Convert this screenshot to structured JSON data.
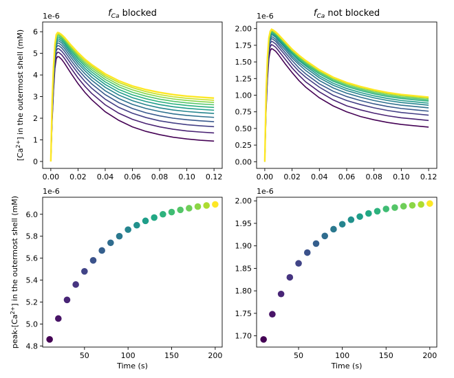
{
  "chart_data": [
    {
      "type": "line",
      "title_symbol": "f",
      "title_sub": "Ca",
      "title_rest": "blocked",
      "ylabel": "",
      "xlabel": "",
      "xlim": [
        -0.006,
        0.126
      ],
      "ylim": [
        -0.32,
        6.45
      ],
      "offset_text": "1e-6",
      "x_ticks": [
        0.0,
        0.02,
        0.04,
        0.06,
        0.08,
        0.1,
        0.12
      ],
      "x_tick_labels": [
        "0.00",
        "0.02",
        "0.04",
        "0.06",
        "0.08",
        "0.10",
        "0.12"
      ],
      "y_ticks": [
        0,
        1,
        2,
        3,
        4,
        5,
        6
      ],
      "y_tick_labels": [
        "0",
        "1",
        "2",
        "3",
        "4",
        "5",
        "6"
      ],
      "curve_time_points": [
        0.0,
        0.001,
        0.002,
        0.003,
        0.004,
        0.005,
        0.006,
        0.008,
        0.01,
        0.015,
        0.02,
        0.025,
        0.03,
        0.04,
        0.05,
        0.06,
        0.07,
        0.08,
        0.09,
        0.1,
        0.11,
        0.12
      ],
      "series": [
        {
          "color": "#440154",
          "values": [
            0.0,
            1.9,
            3.3,
            4.3,
            4.75,
            4.85,
            4.84,
            4.72,
            4.55,
            4.06,
            3.6,
            3.2,
            2.86,
            2.3,
            1.9,
            1.6,
            1.39,
            1.24,
            1.12,
            1.04,
            0.98,
            0.94
          ]
        },
        {
          "color": "#482173",
          "values": [
            0.0,
            2.0,
            3.4,
            4.45,
            4.95,
            5.05,
            5.04,
            4.93,
            4.77,
            4.3,
            3.86,
            3.48,
            3.15,
            2.62,
            2.23,
            1.95,
            1.75,
            1.6,
            1.49,
            1.41,
            1.36,
            1.32
          ]
        },
        {
          "color": "#433e85",
          "values": [
            0.0,
            2.1,
            3.55,
            4.6,
            5.12,
            5.22,
            5.21,
            5.1,
            4.95,
            4.5,
            4.08,
            3.71,
            3.39,
            2.88,
            2.5,
            2.23,
            2.03,
            1.88,
            1.78,
            1.7,
            1.65,
            1.61
          ]
        },
        {
          "color": "#38588c",
          "values": [
            0.0,
            2.2,
            3.7,
            4.75,
            5.26,
            5.36,
            5.35,
            5.25,
            5.1,
            4.66,
            4.25,
            3.9,
            3.59,
            3.09,
            2.72,
            2.45,
            2.25,
            2.11,
            2.0,
            1.93,
            1.88,
            1.84
          ]
        },
        {
          "color": "#2d708e",
          "values": [
            0.0,
            2.3,
            3.82,
            4.87,
            5.38,
            5.48,
            5.47,
            5.37,
            5.23,
            4.8,
            4.4,
            4.06,
            3.76,
            3.27,
            2.91,
            2.64,
            2.45,
            2.31,
            2.2,
            2.13,
            2.08,
            2.04
          ]
        },
        {
          "color": "#25858e",
          "values": [
            0.0,
            2.4,
            3.95,
            5.0,
            5.48,
            5.58,
            5.57,
            5.48,
            5.34,
            4.92,
            4.53,
            4.2,
            3.9,
            3.43,
            3.07,
            2.81,
            2.62,
            2.48,
            2.38,
            2.31,
            2.26,
            2.22
          ]
        },
        {
          "color": "#1e9b8a",
          "values": [
            0.0,
            2.5,
            4.05,
            5.1,
            5.57,
            5.67,
            5.66,
            5.57,
            5.44,
            5.02,
            4.64,
            4.31,
            4.03,
            3.56,
            3.21,
            2.95,
            2.77,
            2.63,
            2.53,
            2.46,
            2.41,
            2.37
          ]
        },
        {
          "color": "#2ab07f",
          "values": [
            0.0,
            2.6,
            4.15,
            5.18,
            5.65,
            5.75,
            5.74,
            5.65,
            5.52,
            5.11,
            4.74,
            4.42,
            4.14,
            3.68,
            3.33,
            3.08,
            2.9,
            2.76,
            2.66,
            2.59,
            2.54,
            2.5
          ]
        },
        {
          "color": "#52c569",
          "values": [
            0.0,
            2.65,
            4.22,
            5.25,
            5.72,
            5.82,
            5.81,
            5.72,
            5.59,
            5.19,
            4.82,
            4.51,
            4.24,
            3.79,
            3.45,
            3.2,
            3.02,
            2.88,
            2.78,
            2.71,
            2.66,
            2.62
          ]
        },
        {
          "color": "#86d549",
          "values": [
            0.0,
            2.7,
            4.28,
            5.31,
            5.78,
            5.88,
            5.87,
            5.78,
            5.65,
            5.26,
            4.9,
            4.59,
            4.33,
            3.89,
            3.55,
            3.31,
            3.13,
            2.99,
            2.89,
            2.82,
            2.77,
            2.73
          ]
        },
        {
          "color": "#c2df23",
          "values": [
            0.0,
            2.75,
            4.33,
            5.36,
            5.82,
            5.92,
            5.91,
            5.82,
            5.7,
            5.32,
            4.97,
            4.67,
            4.41,
            3.97,
            3.65,
            3.41,
            3.23,
            3.09,
            2.99,
            2.92,
            2.87,
            2.83
          ]
        },
        {
          "color": "#fde725",
          "values": [
            0.0,
            2.8,
            4.38,
            5.4,
            5.86,
            5.96,
            5.95,
            5.86,
            5.74,
            5.37,
            5.03,
            4.73,
            4.48,
            4.05,
            3.73,
            3.49,
            3.32,
            3.19,
            3.09,
            3.02,
            2.97,
            2.93
          ]
        }
      ]
    },
    {
      "type": "line",
      "title_symbol": "f",
      "title_sub": "Ca",
      "title_rest": "not blocked",
      "ylabel": "",
      "xlabel": "",
      "xlim": [
        -0.006,
        0.126
      ],
      "ylim": [
        -0.1,
        2.1
      ],
      "offset_text": "1e-6",
      "x_ticks": [
        0.0,
        0.02,
        0.04,
        0.06,
        0.08,
        0.1,
        0.12
      ],
      "x_tick_labels": [
        "0.00",
        "0.02",
        "0.04",
        "0.06",
        "0.08",
        "0.10",
        "0.12"
      ],
      "y_ticks": [
        0,
        0.25,
        0.5,
        0.75,
        1.0,
        1.25,
        1.5,
        1.75,
        2.0
      ],
      "y_tick_labels": [
        "0.00",
        "0.25",
        "0.50",
        "0.75",
        "1.00",
        "1.25",
        "1.50",
        "1.75",
        "2.00"
      ],
      "curve_time_points": [
        0.0,
        0.001,
        0.002,
        0.003,
        0.004,
        0.005,
        0.006,
        0.008,
        0.01,
        0.015,
        0.02,
        0.025,
        0.03,
        0.04,
        0.05,
        0.06,
        0.07,
        0.08,
        0.09,
        0.1,
        0.11,
        0.12
      ],
      "series": [
        {
          "color": "#440154",
          "values": [
            0.0,
            0.78,
            1.25,
            1.55,
            1.67,
            1.7,
            1.69,
            1.66,
            1.61,
            1.47,
            1.34,
            1.22,
            1.12,
            0.96,
            0.84,
            0.75,
            0.68,
            0.63,
            0.59,
            0.56,
            0.54,
            0.52
          ]
        },
        {
          "color": "#482173",
          "values": [
            0.0,
            0.82,
            1.3,
            1.61,
            1.73,
            1.76,
            1.75,
            1.72,
            1.67,
            1.54,
            1.41,
            1.3,
            1.2,
            1.05,
            0.93,
            0.84,
            0.78,
            0.73,
            0.69,
            0.66,
            0.64,
            0.62
          ]
        },
        {
          "color": "#433e85",
          "values": [
            0.0,
            0.86,
            1.35,
            1.66,
            1.78,
            1.81,
            1.8,
            1.77,
            1.72,
            1.6,
            1.47,
            1.36,
            1.27,
            1.12,
            1.0,
            0.92,
            0.86,
            0.81,
            0.77,
            0.74,
            0.72,
            0.7
          ]
        },
        {
          "color": "#38588c",
          "values": [
            0.0,
            0.9,
            1.4,
            1.7,
            1.82,
            1.85,
            1.84,
            1.81,
            1.76,
            1.64,
            1.52,
            1.41,
            1.32,
            1.17,
            1.06,
            0.98,
            0.92,
            0.87,
            0.83,
            0.8,
            0.78,
            0.76
          ]
        },
        {
          "color": "#2d708e",
          "values": [
            0.0,
            0.93,
            1.44,
            1.74,
            1.85,
            1.88,
            1.87,
            1.84,
            1.79,
            1.68,
            1.56,
            1.46,
            1.37,
            1.22,
            1.11,
            1.03,
            0.97,
            0.92,
            0.88,
            0.85,
            0.83,
            0.81
          ]
        },
        {
          "color": "#25858e",
          "values": [
            0.0,
            0.96,
            1.47,
            1.77,
            1.88,
            1.91,
            1.9,
            1.87,
            1.82,
            1.71,
            1.59,
            1.49,
            1.41,
            1.26,
            1.15,
            1.07,
            1.01,
            0.96,
            0.92,
            0.89,
            0.87,
            0.85
          ]
        },
        {
          "color": "#1e9b8a",
          "values": [
            0.0,
            0.98,
            1.49,
            1.79,
            1.9,
            1.93,
            1.92,
            1.89,
            1.84,
            1.73,
            1.62,
            1.52,
            1.44,
            1.29,
            1.18,
            1.1,
            1.04,
            0.99,
            0.95,
            0.92,
            0.9,
            0.88
          ]
        },
        {
          "color": "#2ab07f",
          "values": [
            0.0,
            1.0,
            1.51,
            1.81,
            1.92,
            1.95,
            1.94,
            1.91,
            1.86,
            1.75,
            1.64,
            1.54,
            1.46,
            1.32,
            1.21,
            1.13,
            1.07,
            1.02,
            0.98,
            0.95,
            0.93,
            0.91
          ]
        },
        {
          "color": "#52c569",
          "values": [
            0.0,
            1.02,
            1.53,
            1.83,
            1.93,
            1.96,
            1.95,
            1.92,
            1.88,
            1.77,
            1.66,
            1.56,
            1.48,
            1.34,
            1.23,
            1.15,
            1.09,
            1.04,
            1.0,
            0.97,
            0.95,
            0.93
          ]
        },
        {
          "color": "#86d549",
          "values": [
            0.0,
            1.04,
            1.55,
            1.84,
            1.94,
            1.97,
            1.96,
            1.93,
            1.89,
            1.78,
            1.67,
            1.58,
            1.5,
            1.36,
            1.25,
            1.17,
            1.11,
            1.06,
            1.02,
            0.99,
            0.97,
            0.95
          ]
        },
        {
          "color": "#c2df23",
          "values": [
            0.0,
            1.05,
            1.56,
            1.85,
            1.95,
            1.98,
            1.97,
            1.94,
            1.9,
            1.79,
            1.68,
            1.59,
            1.51,
            1.37,
            1.26,
            1.18,
            1.12,
            1.07,
            1.03,
            1.0,
            0.98,
            0.96
          ]
        },
        {
          "color": "#fde725",
          "values": [
            0.0,
            1.06,
            1.57,
            1.86,
            1.96,
            1.99,
            1.98,
            1.95,
            1.91,
            1.8,
            1.69,
            1.6,
            1.52,
            1.38,
            1.27,
            1.19,
            1.13,
            1.08,
            1.04,
            1.01,
            0.99,
            0.97
          ]
        }
      ]
    },
    {
      "type": "scatter",
      "title": "",
      "xlabel": "Time (s)",
      "ylabel": "",
      "xlim": [
        2,
        208
      ],
      "ylim": [
        4.79,
        6.155
      ],
      "offset_text": "1e-6",
      "x_ticks": [
        50,
        100,
        150,
        200
      ],
      "x_tick_labels": [
        "50",
        "100",
        "150",
        "200"
      ],
      "y_ticks": [
        4.8,
        5.0,
        5.2,
        5.4,
        5.6,
        5.8,
        6.0
      ],
      "y_tick_labels": [
        "4.8",
        "5.0",
        "5.2",
        "5.4",
        "5.6",
        "5.8",
        "6.0"
      ],
      "x": [
        10,
        20,
        30,
        40,
        50,
        60,
        70,
        80,
        90,
        100,
        110,
        120,
        130,
        140,
        150,
        160,
        170,
        180,
        190,
        200
      ],
      "y": [
        4.86,
        5.05,
        5.22,
        5.36,
        5.48,
        5.58,
        5.67,
        5.74,
        5.8,
        5.86,
        5.9,
        5.94,
        5.97,
        6.0,
        6.02,
        6.04,
        6.055,
        6.07,
        6.08,
        6.09
      ],
      "colors": [
        "#440154",
        "#481467",
        "#482576",
        "#463480",
        "#414487",
        "#3b528b",
        "#355f8d",
        "#2f6c8e",
        "#2a788e",
        "#25848e",
        "#21918c",
        "#1f9e89",
        "#22a884",
        "#2db27d",
        "#3fbc73",
        "#54c568",
        "#6ece58",
        "#8bd646",
        "#addc30",
        "#fde725"
      ]
    },
    {
      "type": "scatter",
      "title": "",
      "xlabel": "Time (s)",
      "ylabel": "",
      "xlim": [
        2,
        208
      ],
      "ylim": [
        1.675,
        2.008
      ],
      "offset_text": "1e-6",
      "x_ticks": [
        50,
        100,
        150,
        200
      ],
      "x_tick_labels": [
        "50",
        "100",
        "150",
        "200"
      ],
      "y_ticks": [
        1.7,
        1.75,
        1.8,
        1.85,
        1.9,
        1.95,
        2.0
      ],
      "y_tick_labels": [
        "1.70",
        "1.75",
        "1.80",
        "1.85",
        "1.90",
        "1.95",
        "2.00"
      ],
      "x": [
        10,
        20,
        30,
        40,
        50,
        60,
        70,
        80,
        90,
        100,
        110,
        120,
        130,
        140,
        150,
        160,
        170,
        180,
        190,
        200
      ],
      "y": [
        1.692,
        1.748,
        1.793,
        1.83,
        1.861,
        1.885,
        1.905,
        1.922,
        1.937,
        1.948,
        1.958,
        1.965,
        1.972,
        1.977,
        1.982,
        1.985,
        1.988,
        1.99,
        1.992,
        1.994
      ],
      "colors": [
        "#440154",
        "#481467",
        "#482576",
        "#463480",
        "#414487",
        "#3b528b",
        "#355f8d",
        "#2f6c8e",
        "#2a788e",
        "#25848e",
        "#21918c",
        "#1f9e89",
        "#22a884",
        "#2db27d",
        "#3fbc73",
        "#54c568",
        "#6ece58",
        "#8bd646",
        "#addc30",
        "#fde725"
      ]
    }
  ],
  "labels": {
    "ylabel_top_prefix": "[Ca",
    "ylabel_top_sup": "2+",
    "ylabel_top_suffix": "] in the outermost shell (mM)",
    "ylabel_bottom_prefix": "peak-[Ca",
    "ylabel_bottom_sup": "2+",
    "ylabel_bottom_suffix": "] in the outermost shell (mM)"
  }
}
